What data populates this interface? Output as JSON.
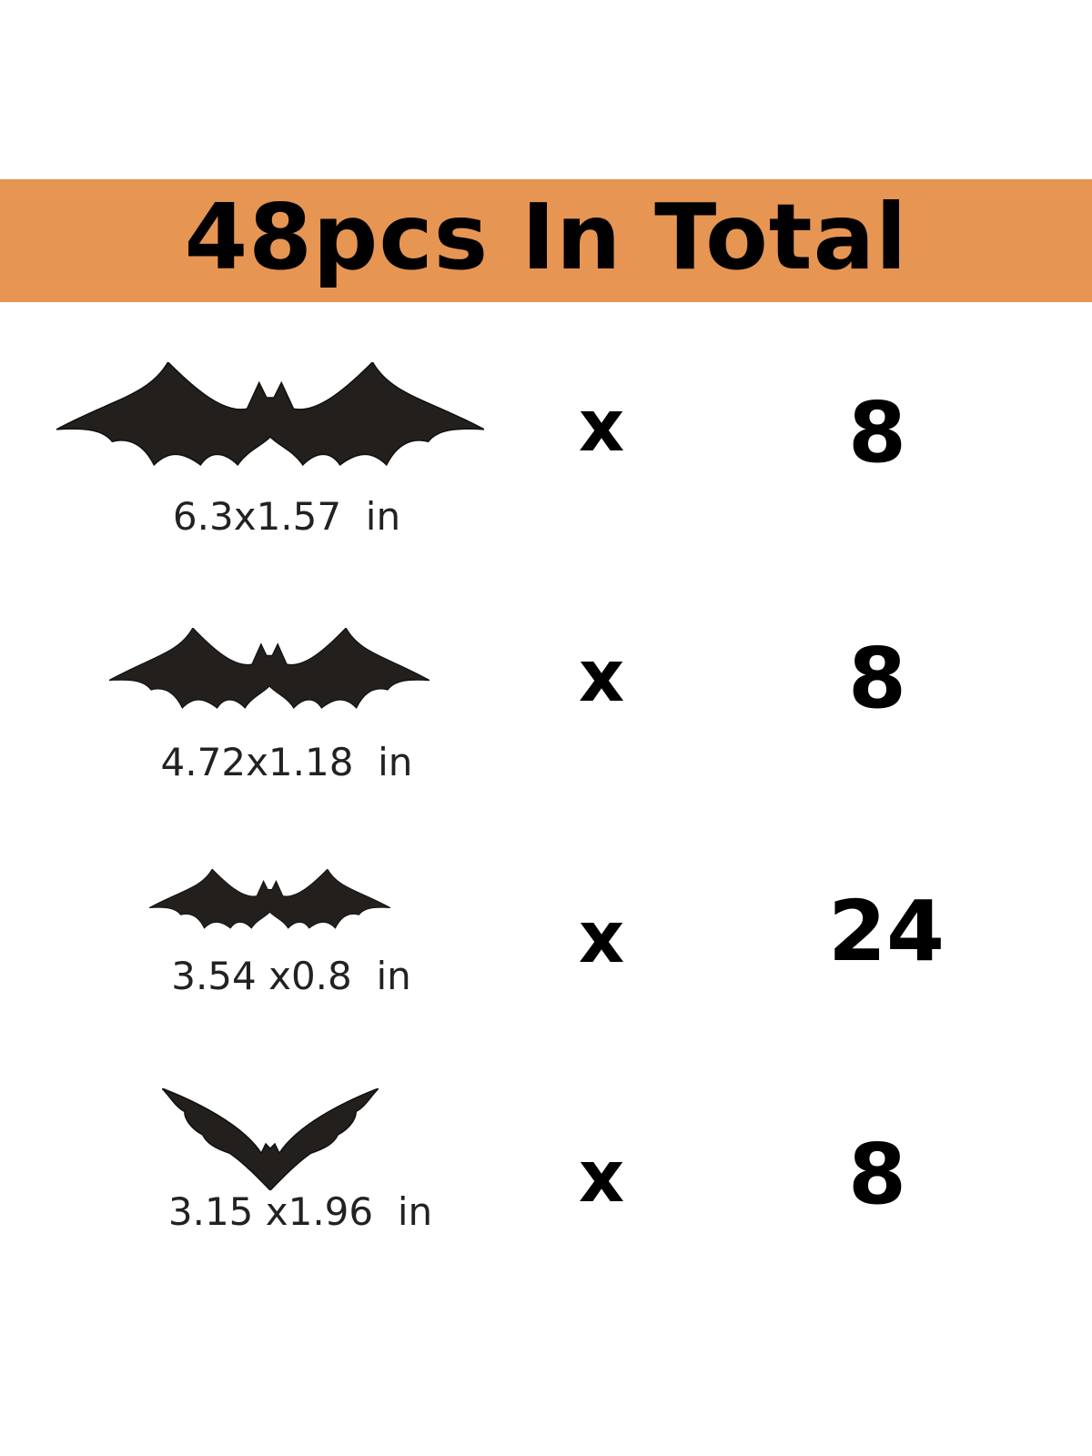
{
  "header": {
    "title": "48pcs In Total",
    "background_color": "#E69553"
  },
  "items": [
    {
      "size": "6.3x1.57  in",
      "multiplier": "x",
      "quantity": "8",
      "icon": "bat-icon"
    },
    {
      "size": "4.72x1.18  in",
      "multiplier": "x",
      "quantity": "8",
      "icon": "bat-icon"
    },
    {
      "size": "3.54 x0.8  in",
      "multiplier": "x",
      "quantity": "24",
      "icon": "bat-icon"
    },
    {
      "size": "3.15 x1.96  in",
      "multiplier": "x",
      "quantity": "8",
      "icon": "bat-v-icon"
    }
  ]
}
